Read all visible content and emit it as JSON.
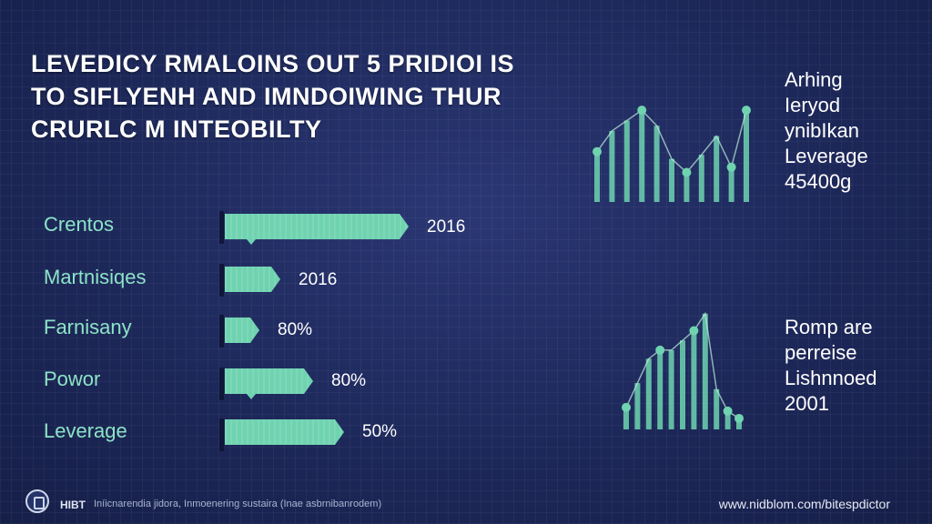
{
  "headline": {
    "line1": "LEVEDICY RMALOINS OUT 5 PRIDIOI IS",
    "line2": "TO SIFLYENH AND IMNDOIWING THUR",
    "line3": "CRURLC M INTEOBILTY"
  },
  "chart_data": {
    "type": "bar",
    "orientation": "horizontal",
    "categories": [
      "Crentos",
      "Martnisiqes",
      "Farnisany",
      "Powor",
      "Leverage"
    ],
    "value_labels": [
      "2016",
      "2016",
      "80%",
      "80%",
      "50%"
    ],
    "relative_lengths": [
      1.0,
      0.3,
      0.19,
      0.48,
      0.65
    ],
    "color": "#6fd3b0"
  },
  "sparklines": [
    {
      "name": "upper",
      "values": [
        0.45,
        0.65,
        0.75,
        0.85,
        0.7,
        0.38,
        0.25,
        0.42,
        0.6,
        0.3,
        0.85
      ],
      "color": "#6fd3b0"
    },
    {
      "name": "lower",
      "values": [
        0.15,
        0.35,
        0.55,
        0.62,
        0.62,
        0.7,
        0.78,
        0.92,
        0.3,
        0.12,
        0.06
      ],
      "color": "#6fd3b0"
    }
  ],
  "side_upper": [
    "Arhing",
    "Ieryod",
    "ynibIkan",
    "Leverage",
    "45400g"
  ],
  "side_lower": [
    "Romp are",
    "perreise",
    "Lishnnoed",
    "2001"
  ],
  "footer": {
    "brand": "HIBT",
    "tagline": "Iníicnarendia jidora, Inmoenering sustaira (Inae asbrnibanrodem)",
    "url": "www.nidblom.com/bitespdictor"
  },
  "colors": {
    "background": "#1e2a5c",
    "accent": "#6fd3b0",
    "label": "#8ce3c7",
    "text": "#ffffff"
  }
}
